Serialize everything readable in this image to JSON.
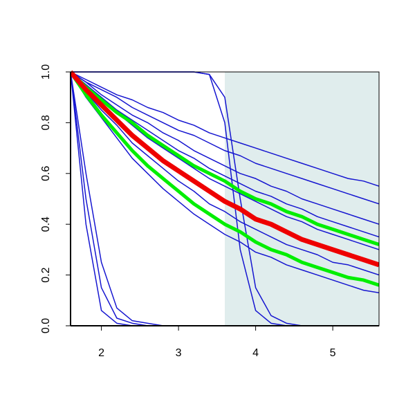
{
  "chart_data": {
    "type": "line",
    "x": [
      1.6,
      1.8,
      2.0,
      2.2,
      2.4,
      2.6,
      2.8,
      3.0,
      3.2,
      3.4,
      3.6,
      3.8,
      4.0,
      4.2,
      4.4,
      4.6,
      4.8,
      5.0,
      5.2,
      5.4,
      5.6
    ],
    "xlim": [
      1.6,
      5.6
    ],
    "xticks": [
      2,
      3,
      4,
      5
    ],
    "ylim": [
      0,
      1
    ],
    "yticks": [
      {
        "value": 0,
        "label": "0.0"
      },
      0.2,
      0.4,
      0.6,
      0.8,
      {
        "value": 1,
        "label": "1.0"
      }
    ],
    "shaded_region": [
      3.6,
      5.6
    ],
    "shade_color": "#e0eded",
    "series": [
      {
        "color": "#1515d0",
        "line_width": 1.5,
        "values": [
          1,
          0.97,
          0.94,
          0.91,
          0.89,
          0.86,
          0.84,
          0.81,
          0.79,
          0.76,
          0.74,
          0.72,
          0.7,
          0.68,
          0.66,
          0.64,
          0.62,
          0.6,
          0.58,
          0.57,
          0.55
        ]
      },
      {
        "color": "#1515d0",
        "line_width": 1.5,
        "values": [
          1,
          0.96,
          0.93,
          0.9,
          0.86,
          0.83,
          0.8,
          0.77,
          0.75,
          0.72,
          0.69,
          0.67,
          0.64,
          0.62,
          0.6,
          0.58,
          0.56,
          0.54,
          0.52,
          0.5,
          0.48
        ]
      },
      {
        "color": "#1515d0",
        "line_width": 1.5,
        "values": [
          1,
          0.96,
          0.91,
          0.87,
          0.83,
          0.8,
          0.76,
          0.73,
          0.69,
          0.66,
          0.63,
          0.6,
          0.58,
          0.55,
          0.53,
          0.5,
          0.48,
          0.46,
          0.44,
          0.42,
          0.4
        ]
      },
      {
        "color": "#1515d0",
        "line_width": 1.5,
        "values": [
          1,
          0.95,
          0.9,
          0.85,
          0.81,
          0.77,
          0.73,
          0.69,
          0.66,
          0.62,
          0.59,
          0.56,
          0.53,
          0.51,
          0.48,
          0.46,
          0.43,
          0.41,
          0.39,
          0.37,
          0.35
        ]
      },
      {
        "color": "#1515d0",
        "line_width": 1.5,
        "values": [
          1,
          0.94,
          0.89,
          0.84,
          0.79,
          0.74,
          0.7,
          0.66,
          0.62,
          0.58,
          0.55,
          0.52,
          0.49,
          0.46,
          0.43,
          0.41,
          0.38,
          0.36,
          0.34,
          0.32,
          0.3
        ]
      },
      {
        "color": "#1515d0",
        "line_width": 1.5,
        "values": [
          1,
          0.92,
          0.85,
          0.79,
          0.72,
          0.67,
          0.62,
          0.57,
          0.53,
          0.48,
          0.45,
          0.41,
          0.38,
          0.35,
          0.32,
          0.3,
          0.28,
          0.25,
          0.24,
          0.22,
          0.2
        ]
      },
      {
        "color": "#1515d0",
        "line_width": 1.5,
        "values": [
          1,
          0.9,
          0.82,
          0.74,
          0.66,
          0.6,
          0.54,
          0.49,
          0.44,
          0.4,
          0.36,
          0.33,
          0.29,
          0.27,
          0.24,
          0.22,
          0.2,
          0.18,
          0.16,
          0.14,
          0.13
        ]
      },
      {
        "color": "#1515d0",
        "line_width": 1.5,
        "values": [
          1,
          0.4,
          0.06,
          0.01,
          0,
          0,
          0,
          0,
          0,
          0,
          0,
          0,
          0,
          0,
          0,
          0,
          0,
          0,
          0,
          0,
          0
        ]
      },
      {
        "color": "#1515d0",
        "line_width": 1.5,
        "values": [
          1,
          0.5,
          0.15,
          0.03,
          0.01,
          0,
          0,
          0,
          0,
          0,
          0,
          0,
          0,
          0,
          0,
          0,
          0,
          0,
          0,
          0,
          0
        ]
      },
      {
        "color": "#1515d0",
        "line_width": 1.5,
        "values": [
          1,
          0.6,
          0.25,
          0.07,
          0.02,
          0.01,
          0,
          0,
          0,
          0,
          0,
          0,
          0,
          0,
          0,
          0,
          0,
          0,
          0,
          0,
          0
        ]
      },
      {
        "color": "#1515d0",
        "line_width": 1.5,
        "values": [
          1,
          1,
          1,
          1,
          1,
          1,
          1,
          1,
          1,
          0.99,
          0.8,
          0.3,
          0.06,
          0.01,
          0,
          0,
          0,
          0,
          0,
          0,
          0
        ]
      },
      {
        "color": "#1515d0",
        "line_width": 1.5,
        "values": [
          1,
          1,
          1,
          1,
          1,
          1,
          1,
          1,
          1,
          0.99,
          0.9,
          0.5,
          0.15,
          0.04,
          0.01,
          0,
          0,
          0,
          0,
          0,
          0
        ]
      },
      {
        "color": "#00ee00",
        "line_width": 5,
        "values": [
          1,
          0.94,
          0.89,
          0.84,
          0.8,
          0.75,
          0.71,
          0.67,
          0.63,
          0.6,
          0.57,
          0.53,
          0.5,
          0.48,
          0.45,
          0.43,
          0.4,
          0.38,
          0.36,
          0.34,
          0.32
        ]
      },
      {
        "color": "#00ee00",
        "line_width": 5,
        "values": [
          1,
          0.91,
          0.83,
          0.76,
          0.69,
          0.63,
          0.58,
          0.53,
          0.48,
          0.44,
          0.4,
          0.37,
          0.33,
          0.3,
          0.28,
          0.25,
          0.23,
          0.21,
          0.19,
          0.18,
          0.16
        ]
      },
      {
        "color": "#ee0000",
        "line_width": 7,
        "values": [
          1,
          0.93,
          0.87,
          0.81,
          0.75,
          0.7,
          0.65,
          0.61,
          0.57,
          0.53,
          0.49,
          0.46,
          0.42,
          0.4,
          0.37,
          0.34,
          0.32,
          0.3,
          0.28,
          0.26,
          0.24
        ]
      }
    ]
  }
}
